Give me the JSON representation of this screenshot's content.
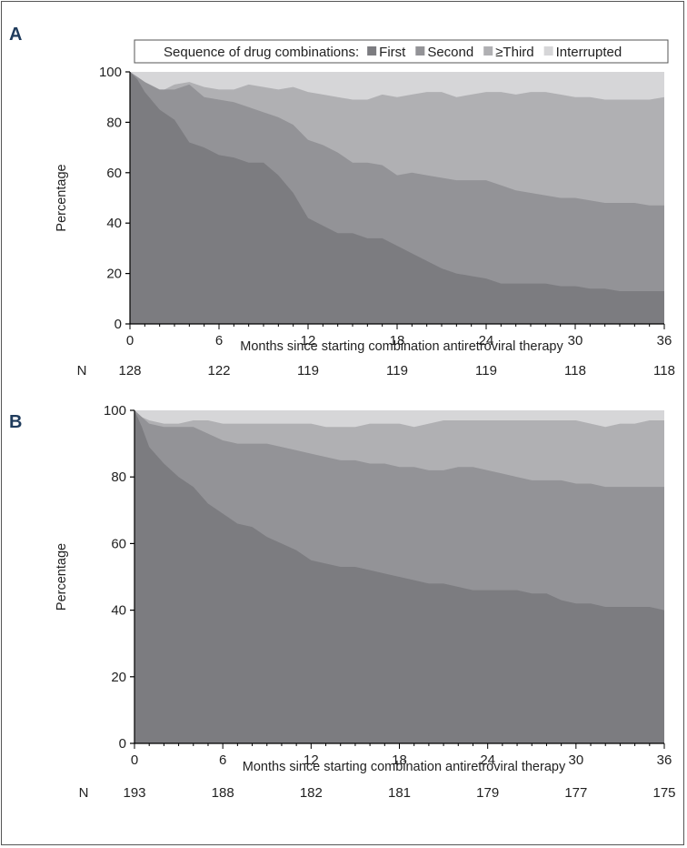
{
  "legend": {
    "title": "Sequence of drug combinations:",
    "items": [
      {
        "label": "First",
        "color": "#7c7c80"
      },
      {
        "label": "Second",
        "color": "#939397"
      },
      {
        "label": "≥Third",
        "color": "#b0b0b3"
      },
      {
        "label": "Interrupted",
        "color": "#d6d6d8"
      }
    ]
  },
  "chart_data": [
    {
      "type": "area",
      "panel": "A",
      "xlabel": "Months since starting combination antiretroviral therapy",
      "ylabel": "Percentage",
      "xlim": [
        0,
        36
      ],
      "ylim": [
        0,
        100
      ],
      "x_ticks": [
        "0",
        "6",
        "12",
        "18",
        "24",
        "30",
        "36"
      ],
      "y_ticks": [
        "0",
        "20",
        "40",
        "60",
        "80",
        "100"
      ],
      "stacked": true,
      "n_label": "N",
      "n_values": [
        "128",
        "122",
        "119",
        "119",
        "119",
        "118",
        "118"
      ],
      "x": [
        0,
        0.5,
        1,
        2,
        3,
        4,
        5,
        6,
        7,
        8,
        9,
        10,
        11,
        12,
        13,
        14,
        15,
        16,
        17,
        18,
        19,
        20,
        21,
        22,
        23,
        24,
        25,
        26,
        27,
        28,
        29,
        30,
        31,
        32,
        33,
        34,
        35,
        36
      ],
      "series": [
        {
          "name": "First",
          "cumulative": [
            100,
            97,
            92,
            85,
            81,
            72,
            70,
            67,
            66,
            64,
            64,
            59,
            52,
            42,
            39,
            36,
            36,
            34,
            34,
            31,
            28,
            25,
            22,
            20,
            19,
            18,
            16,
            16,
            16,
            16,
            15,
            15,
            14,
            14,
            13,
            13,
            13,
            13
          ]
        },
        {
          "name": "Second",
          "cumulative": [
            100,
            98,
            96,
            93,
            93,
            95,
            90,
            89,
            88,
            86,
            84,
            82,
            79,
            73,
            71,
            68,
            64,
            64,
            63,
            59,
            60,
            59,
            58,
            57,
            57,
            57,
            55,
            53,
            52,
            51,
            50,
            50,
            49,
            48,
            48,
            48,
            47,
            47
          ]
        },
        {
          "name": "≥Third",
          "cumulative": [
            100,
            98,
            96,
            92,
            95,
            96,
            94,
            93,
            93,
            95,
            94,
            93,
            94,
            92,
            91,
            90,
            89,
            89,
            91,
            90,
            91,
            92,
            92,
            90,
            91,
            92,
            92,
            91,
            92,
            92,
            91,
            90,
            90,
            89,
            89,
            89,
            89,
            90
          ]
        },
        {
          "name": "Interrupted",
          "cumulative": [
            100,
            100,
            100,
            100,
            100,
            100,
            100,
            100,
            100,
            100,
            100,
            100,
            100,
            100,
            100,
            100,
            100,
            100,
            100,
            100,
            100,
            100,
            100,
            100,
            100,
            100,
            100,
            100,
            100,
            100,
            100,
            100,
            100,
            100,
            100,
            100,
            100,
            100
          ]
        }
      ]
    },
    {
      "type": "area",
      "panel": "B",
      "xlabel": "Months since starting combination antiretroviral therapy",
      "ylabel": "Percentage",
      "xlim": [
        0,
        36
      ],
      "ylim": [
        0,
        100
      ],
      "x_ticks": [
        "0",
        "6",
        "12",
        "18",
        "24",
        "30",
        "36"
      ],
      "y_ticks": [
        "0",
        "20",
        "40",
        "60",
        "80",
        "100"
      ],
      "stacked": true,
      "n_label": "N",
      "n_values": [
        "193",
        "188",
        "182",
        "181",
        "179",
        "177",
        "175"
      ],
      "x": [
        0,
        0.5,
        1,
        2,
        3,
        4,
        5,
        6,
        7,
        8,
        9,
        10,
        11,
        12,
        13,
        14,
        15,
        16,
        17,
        18,
        19,
        20,
        21,
        22,
        23,
        24,
        25,
        26,
        27,
        28,
        29,
        30,
        31,
        32,
        33,
        34,
        35,
        36
      ],
      "series": [
        {
          "name": "First",
          "cumulative": [
            100,
            95,
            89,
            84,
            80,
            77,
            72,
            69,
            66,
            65,
            62,
            60,
            58,
            55,
            54,
            53,
            53,
            52,
            51,
            50,
            49,
            48,
            48,
            47,
            46,
            46,
            46,
            46,
            45,
            45,
            43,
            42,
            42,
            41,
            41,
            41,
            41,
            40
          ]
        },
        {
          "name": "Second",
          "cumulative": [
            100,
            98,
            96,
            95,
            95,
            95,
            93,
            91,
            90,
            90,
            90,
            89,
            88,
            87,
            86,
            85,
            85,
            84,
            84,
            83,
            83,
            82,
            82,
            83,
            83,
            82,
            81,
            80,
            79,
            79,
            79,
            78,
            78,
            77,
            77,
            77,
            77,
            77
          ]
        },
        {
          "name": "≥Third",
          "cumulative": [
            100,
            98,
            97,
            96,
            96,
            97,
            97,
            96,
            96,
            96,
            96,
            96,
            96,
            96,
            95,
            95,
            95,
            96,
            96,
            96,
            95,
            96,
            97,
            97,
            97,
            97,
            97,
            97,
            97,
            97,
            97,
            97,
            96,
            95,
            96,
            96,
            97,
            97
          ]
        },
        {
          "name": "Interrupted",
          "cumulative": [
            100,
            100,
            100,
            100,
            100,
            100,
            100,
            100,
            100,
            100,
            100,
            100,
            100,
            100,
            100,
            100,
            100,
            100,
            100,
            100,
            100,
            100,
            100,
            100,
            100,
            100,
            100,
            100,
            100,
            100,
            100,
            100,
            100,
            100,
            100,
            100,
            100,
            100
          ]
        }
      ]
    }
  ]
}
